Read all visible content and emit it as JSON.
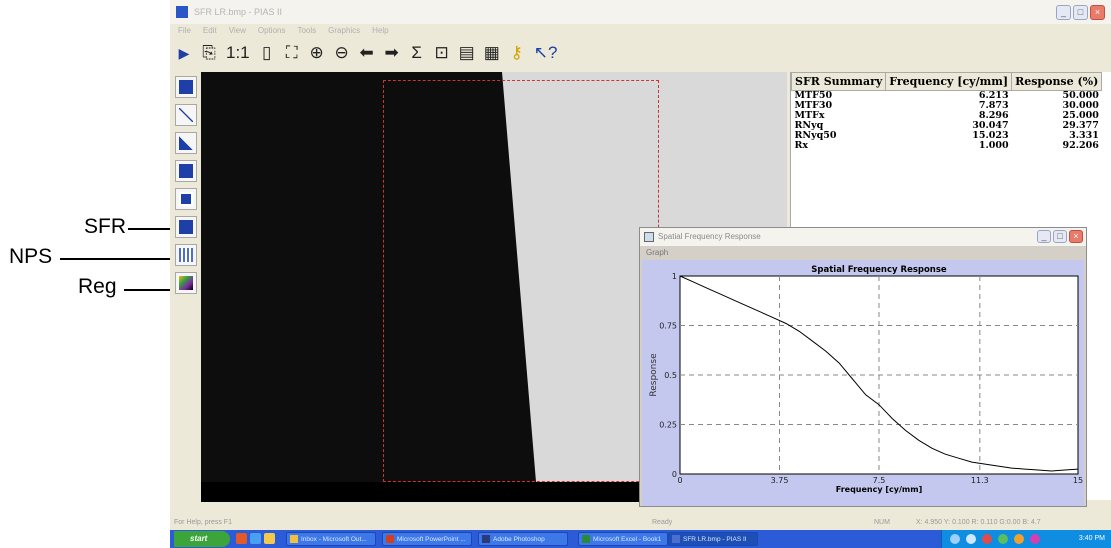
{
  "callouts": [
    {
      "label": "SFR"
    },
    {
      "label": "NPS"
    },
    {
      "label": "Reg"
    }
  ],
  "window": {
    "title": "SFR LR.bmp - PIAS II",
    "menus": [
      "File",
      "Edit",
      "View",
      "Options",
      "Tools",
      "Graphics",
      "Help"
    ]
  },
  "toolbar": {
    "buttons": [
      {
        "icon": "run-icon",
        "glyph": "▶"
      },
      {
        "icon": "copy-icon",
        "glyph": "⎘"
      },
      {
        "icon": "actual-size-icon",
        "glyph": "1:1"
      },
      {
        "icon": "page-icon",
        "glyph": "▯"
      },
      {
        "icon": "fit-window-icon",
        "glyph": "⛶"
      },
      {
        "icon": "zoom-in-icon",
        "glyph": "⊕"
      },
      {
        "icon": "zoom-out-icon",
        "glyph": "⊖"
      },
      {
        "icon": "arrow-left-icon",
        "glyph": "⬅"
      },
      {
        "icon": "arrow-right-icon",
        "glyph": "➡"
      },
      {
        "icon": "sum-icon",
        "glyph": "Σ"
      },
      {
        "icon": "panel-icon",
        "glyph": "⊡"
      },
      {
        "icon": "table-icon",
        "glyph": "▤"
      },
      {
        "icon": "grid-icon",
        "glyph": "▦"
      },
      {
        "icon": "key-icon",
        "glyph": "⚷"
      },
      {
        "icon": "context-help-icon",
        "glyph": "↖?"
      }
    ]
  },
  "left_tools": [
    {
      "icon": "fit-tool-icon",
      "color": "#1e3fa8"
    },
    {
      "icon": "line-tool-icon",
      "color": "#1e3fa8"
    },
    {
      "icon": "triangle-tool-icon",
      "color": "#1e3fa8"
    },
    {
      "icon": "rectangle-tool-icon",
      "color": "#1e3fa8"
    },
    {
      "icon": "cross-tool-icon",
      "color": "#1e3fa8"
    },
    {
      "icon": "sfr-tool-icon",
      "color": "#1e3fa8"
    },
    {
      "icon": "nps-tool-icon",
      "color": "#4a6fd0"
    },
    {
      "icon": "reg-tool-icon",
      "color": "#7a2aa0"
    }
  ],
  "summary": {
    "headers": [
      "SFR Summary",
      "Frequency [cy/mm]",
      "Response (%)"
    ],
    "rows": [
      [
        "MTF50",
        "6.213",
        "50.000"
      ],
      [
        "MTF30",
        "7.873",
        "30.000"
      ],
      [
        "MTFx",
        "8.296",
        "25.000"
      ],
      [
        "RNyq",
        "30.047",
        "29.377"
      ],
      [
        "RNyq50",
        "15.023",
        "3.331"
      ],
      [
        "Rx",
        "1.000",
        "92.206"
      ]
    ]
  },
  "sfr_window": {
    "title": "Spatial Frequency Response",
    "menu": "Graph"
  },
  "chart_data": {
    "type": "line",
    "title": "Spatial Frequency Response",
    "xlabel": "Frequency [cy/mm]",
    "ylabel": "Response",
    "xlim": [
      0,
      15
    ],
    "ylim": [
      0,
      1
    ],
    "xticks": [
      "0",
      "3.75",
      "7.5",
      "11.3",
      "15"
    ],
    "yticks": [
      "0",
      "0.25",
      "0.5",
      "0.75",
      "1"
    ],
    "grid": true,
    "series": [
      {
        "color": "#000000",
        "x": [
          0,
          0.5,
          1,
          1.5,
          2,
          2.5,
          3,
          3.5,
          4,
          4.5,
          5,
          5.5,
          6,
          6.5,
          7,
          7.5,
          8,
          8.5,
          9,
          9.5,
          10,
          10.5,
          11,
          11.5,
          12,
          12.5,
          13,
          13.5,
          14,
          14.5,
          15
        ],
        "y": [
          1.0,
          0.97,
          0.94,
          0.91,
          0.88,
          0.85,
          0.82,
          0.79,
          0.76,
          0.72,
          0.67,
          0.62,
          0.56,
          0.48,
          0.4,
          0.35,
          0.28,
          0.22,
          0.17,
          0.13,
          0.1,
          0.08,
          0.06,
          0.05,
          0.04,
          0.03,
          0.025,
          0.02,
          0.015,
          0.02,
          0.025
        ]
      }
    ]
  },
  "statusbar": {
    "left": "For Help, press F1",
    "mid": "Ready",
    "num": "NUM",
    "coords": "X: 4.950 Y: 0.100 R: 0.110 G:0.00 B: 4.7"
  },
  "taskbar": {
    "start": "start",
    "tasks": [
      {
        "label": "Inbox - Microsoft Out...",
        "icon_color": "#f0c040"
      },
      {
        "label": "Microsoft PowerPoint ...",
        "icon_color": "#d04020"
      },
      {
        "label": "Adobe Photoshop",
        "icon_color": "#2a3a7a"
      },
      {
        "label": "Microsoft Excel - Book1",
        "icon_color": "#2a8a3a"
      },
      {
        "label": "SFR LR.bmp - PIAS II",
        "icon_color": "#4a6fd0"
      }
    ],
    "clock": "3:40 PM"
  }
}
